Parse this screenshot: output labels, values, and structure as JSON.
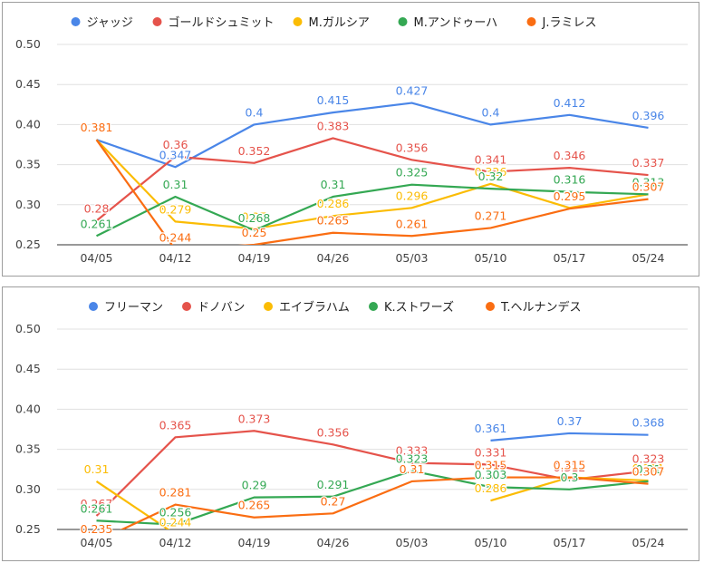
{
  "colors": {
    "blue": "#4a86e8",
    "red": "#e5534b",
    "yellow": "#fbbc04",
    "green": "#34a853",
    "orange": "#fa6d12"
  },
  "chart_data": [
    {
      "type": "line",
      "categories": [
        "04/05",
        "04/12",
        "04/19",
        "04/26",
        "05/03",
        "05/10",
        "05/17",
        "05/24"
      ],
      "ylim": [
        0.25,
        0.5
      ],
      "yticks": [
        "0.50",
        "0.45",
        "0.40",
        "0.35",
        "0.30",
        "0.25"
      ],
      "grid": true,
      "legend_position": "top",
      "series": [
        {
          "name": "ジャッジ",
          "color": "blue",
          "values": [
            0.381,
            0.347,
            0.4,
            0.415,
            0.427,
            0.4,
            0.412,
            0.396
          ]
        },
        {
          "name": "ゴールドシュミット",
          "color": "red",
          "values": [
            0.28,
            0.36,
            0.352,
            0.383,
            0.356,
            0.341,
            0.346,
            0.337
          ]
        },
        {
          "name": "M.ガルシア",
          "color": "yellow",
          "values": [
            0.381,
            0.279,
            0.27,
            0.286,
            0.296,
            0.326,
            0.296,
            0.313
          ]
        },
        {
          "name": "M.アンドゥーハ",
          "color": "green",
          "values": [
            0.261,
            0.31,
            0.268,
            0.31,
            0.325,
            0.32,
            0.316,
            0.313
          ]
        },
        {
          "name": "J.ラミレス",
          "color": "orange",
          "values": [
            0.381,
            0.244,
            0.25,
            0.265,
            0.261,
            0.271,
            0.295,
            0.307
          ]
        }
      ]
    },
    {
      "type": "line",
      "categories": [
        "04/05",
        "04/12",
        "04/19",
        "04/26",
        "05/03",
        "05/10",
        "05/17",
        "05/24"
      ],
      "ylim": [
        0.25,
        0.5
      ],
      "yticks": [
        "0.50",
        "0.45",
        "0.40",
        "0.35",
        "0.30",
        "0.25"
      ],
      "grid": true,
      "legend_position": "top",
      "series": [
        {
          "name": "フリーマン",
          "color": "blue",
          "values": [
            null,
            null,
            null,
            null,
            null,
            0.361,
            0.37,
            0.368
          ]
        },
        {
          "name": "ドノバン",
          "color": "red",
          "values": [
            0.267,
            0.365,
            0.373,
            0.356,
            0.333,
            0.331,
            0.312,
            0.323
          ]
        },
        {
          "name": "エイブラハム",
          "color": "yellow",
          "values": [
            0.31,
            0.244,
            null,
            null,
            null,
            0.286,
            0.315,
            0.311
          ]
        },
        {
          "name": "K.ストワーズ",
          "color": "green",
          "values": [
            0.261,
            0.256,
            0.29,
            0.291,
            0.323,
            0.303,
            0.3,
            0.31
          ]
        },
        {
          "name": "T.ヘルナンデス",
          "color": "orange",
          "values": [
            0.235,
            0.281,
            0.265,
            0.27,
            0.31,
            0.315,
            0.315,
            0.307
          ]
        }
      ]
    }
  ]
}
